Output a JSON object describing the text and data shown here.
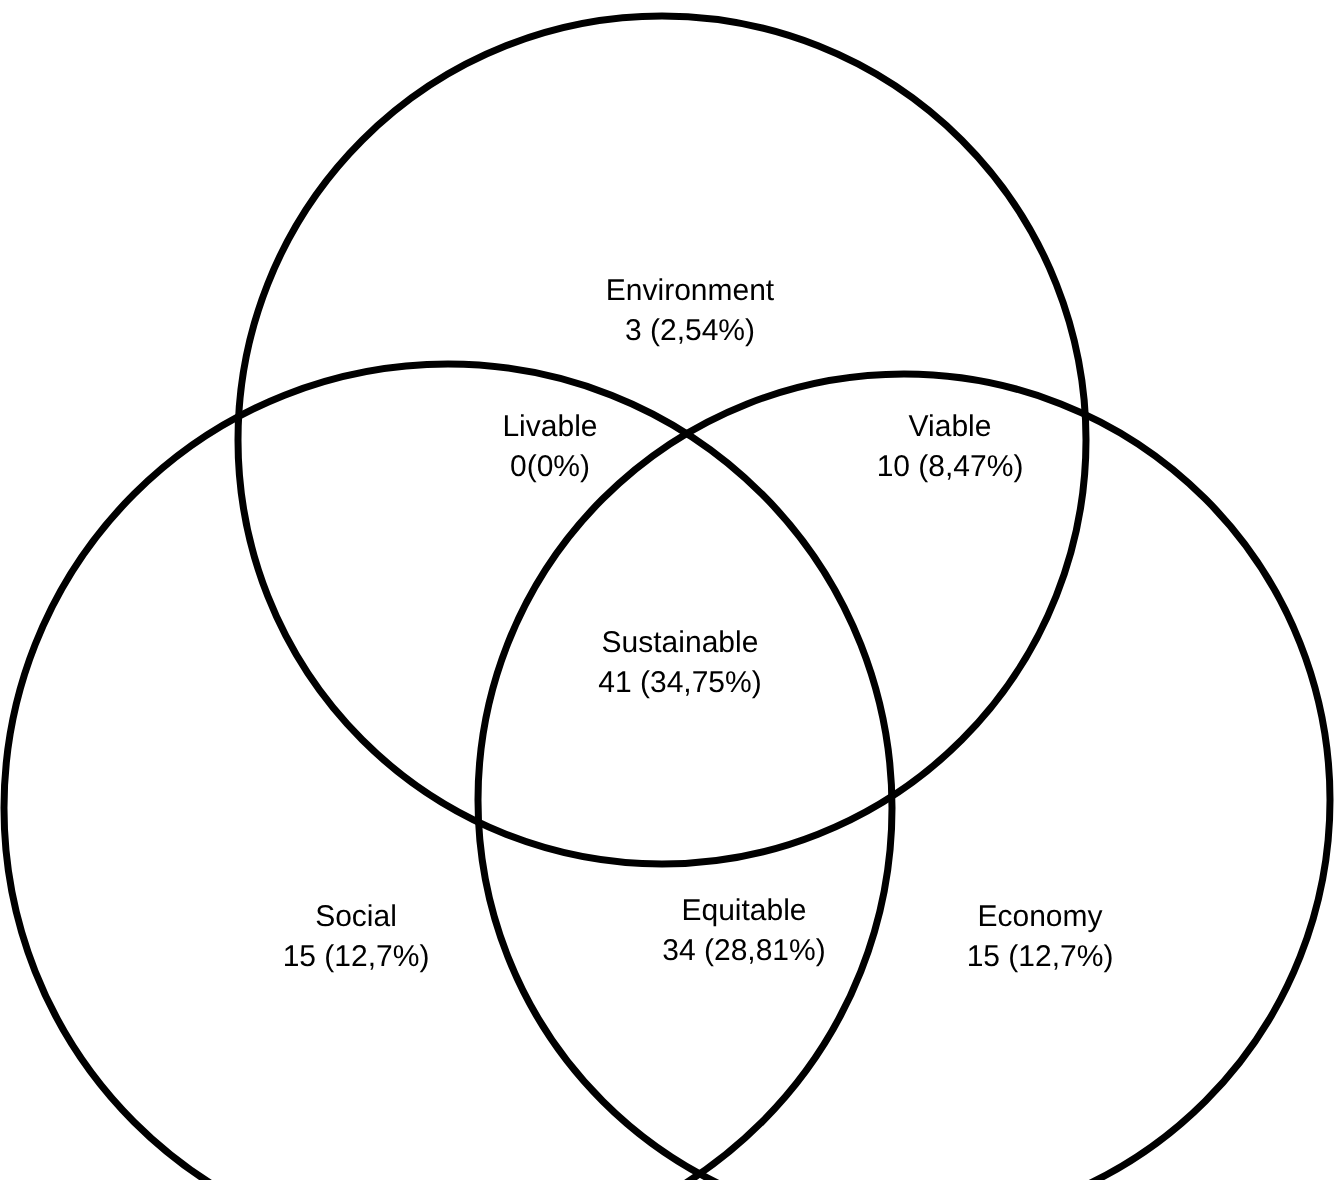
{
  "chart_data": {
    "type": "other",
    "categories": [
      "Environment",
      "Livable",
      "Viable",
      "Sustainable",
      "Social",
      "Equitable",
      "Economy"
    ],
    "values": [
      3,
      0,
      10,
      41,
      15,
      34,
      15
    ],
    "value_labels": [
      "3 (2,54%)",
      "0(0%)",
      "10 (8,47%)",
      "41 (34,75%)",
      "15 (12,7%)",
      "34 (28,81%)",
      "15 (12,7%)"
    ]
  }
}
